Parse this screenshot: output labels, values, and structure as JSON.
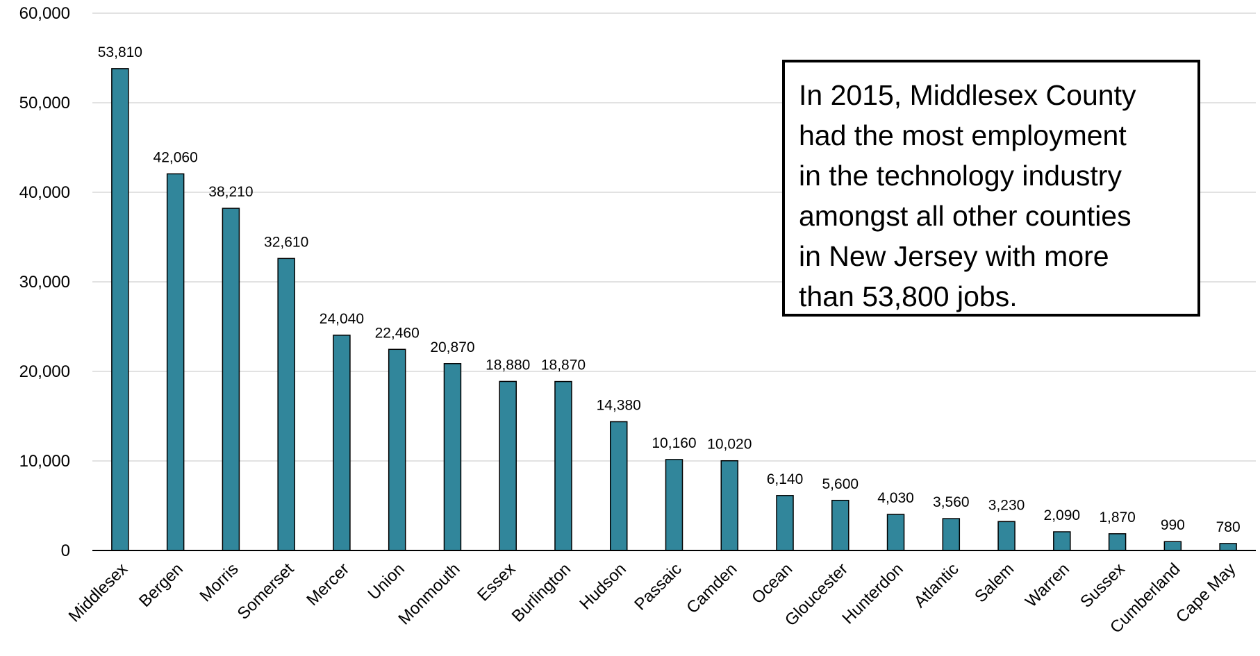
{
  "chart_data": {
    "type": "bar",
    "title": "",
    "xlabel": "",
    "ylabel": "",
    "ylim": [
      0,
      60000
    ],
    "yticks": [
      "0",
      "10,000",
      "20,000",
      "30,000",
      "40,000",
      "50,000",
      "60,000"
    ],
    "grid": true,
    "bar_color": "#31869b",
    "categories": [
      "Middlesex",
      "Bergen",
      "Morris",
      "Somerset",
      "Mercer",
      "Union",
      "Monmouth",
      "Essex",
      "Burlington",
      "Hudson",
      "Passaic",
      "Camden",
      "Ocean",
      "Gloucester",
      "Hunterdon",
      "Atlantic",
      "Salem",
      "Warren",
      "Sussex",
      "Cumberland",
      "Cape May"
    ],
    "values": [
      53810,
      42060,
      38210,
      32610,
      24040,
      22460,
      20870,
      18880,
      18870,
      14380,
      10160,
      10020,
      6140,
      5600,
      4030,
      3560,
      3230,
      2090,
      1870,
      990,
      780
    ],
    "value_labels": [
      "53,810",
      "42,060",
      "38,210",
      "32,610",
      "24,040",
      "22,460",
      "20,870",
      "18,880",
      "18,870",
      "14,380",
      "10,160",
      "10,020",
      "6,140",
      "5,600",
      "4,030",
      "3,560",
      "3,230",
      "2,090",
      "1,870",
      "990",
      "780"
    ]
  },
  "annotation": {
    "lines": [
      "In 2015, Middlesex County",
      "had the most employment",
      "in the technology industry",
      "amongst all other counties",
      "in New Jersey with more",
      "than 53,800 jobs."
    ]
  }
}
